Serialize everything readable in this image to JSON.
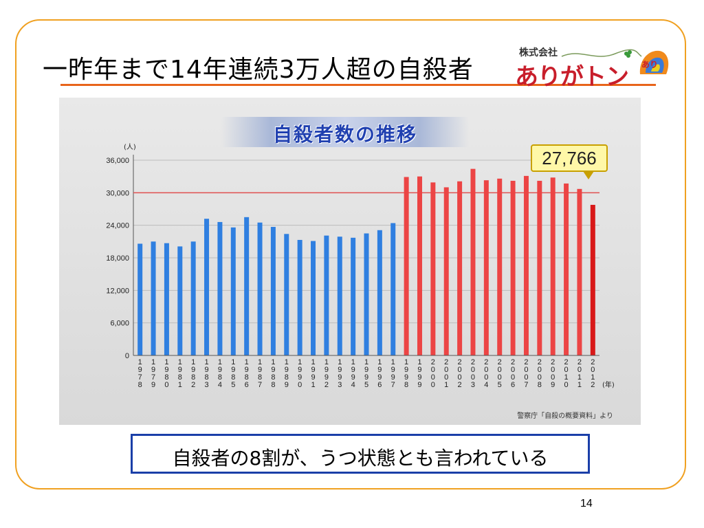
{
  "slide": {
    "title": "一昨年まで14年連続3万人超の自殺者",
    "note": "自殺者の8割が、うつ状態とも言われている",
    "page_number": "14"
  },
  "logo": {
    "corp_label": "株式会社",
    "main_text": "ありがトン",
    "badge_text": "あり"
  },
  "callout": {
    "value_text": "27,766"
  },
  "source_text": "警察庁「自殺の概要資料」より",
  "colors": {
    "frame": "#f0a020",
    "underline": "#e8641a",
    "blue_bar": "#2f7fe0",
    "red_bar": "#ec4444",
    "last_bar": "#d81818",
    "ref_line": "#e05050",
    "note_border": "#1a3fa8"
  },
  "chart_data": {
    "type": "bar",
    "title": "自殺者数の推移",
    "y_unit_label": "(人)",
    "x_unit_label": "(年)",
    "ylim": [
      0,
      36000
    ],
    "yticks": [
      0,
      6000,
      12000,
      18000,
      24000,
      30000,
      36000
    ],
    "ytick_labels": [
      "0",
      "6,000",
      "12,000",
      "18,000",
      "24,000",
      "30,000",
      "36,000"
    ],
    "reference_line": 30000,
    "grid": true,
    "categories": [
      "1978",
      "1979",
      "1980",
      "1981",
      "1982",
      "1983",
      "1984",
      "1985",
      "1986",
      "1987",
      "1988",
      "1989",
      "1990",
      "1991",
      "1992",
      "1993",
      "1994",
      "1995",
      "1996",
      "1997",
      "1998",
      "1999",
      "2000",
      "2001",
      "2002",
      "2003",
      "2004",
      "2005",
      "2006",
      "2007",
      "2008",
      "2009",
      "2010",
      "2011",
      "2012"
    ],
    "values": [
      20600,
      21000,
      20700,
      20100,
      21000,
      25200,
      24600,
      23600,
      25500,
      24500,
      23700,
      22400,
      21300,
      21100,
      22100,
      21900,
      21700,
      22500,
      23100,
      24400,
      32900,
      33000,
      31900,
      31000,
      32100,
      34400,
      32300,
      32600,
      32200,
      33100,
      32200,
      32800,
      31700,
      30700,
      27766
    ]
  }
}
